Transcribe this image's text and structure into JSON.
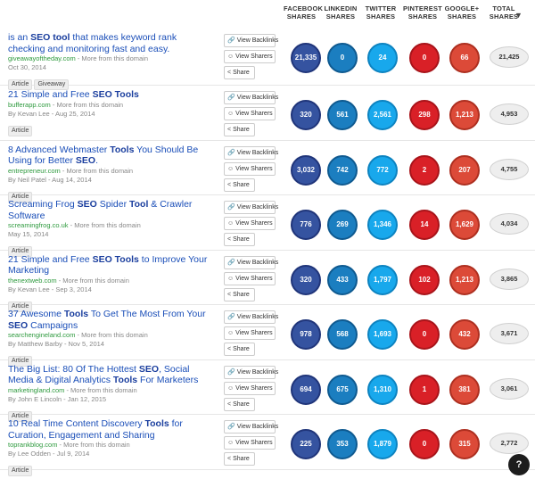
{
  "header": {
    "facebook": "FACEBOOK\nSHARES",
    "linkedin": "LINKEDIN\nSHARES",
    "twitter": "TWITTER\nSHARES",
    "pinterest": "PINTEREST\nSHARES",
    "googleplus": "GOOGLE+\nSHARES",
    "total": "TOTAL SHARES"
  },
  "buttons": {
    "backlinks": "View Backlinks",
    "sharers": "View Sharers",
    "share": "Share"
  },
  "rows": [
    {
      "title_html": "is an <b>SEO tool</b> that makes keyword rank checking and monitoring fast and easy.",
      "domain": "giveawayoftheday.com",
      "more": " - More from this domain",
      "byline": "Oct 30, 2014",
      "tags": [
        "Article",
        "Giveaway"
      ],
      "fb": "21,335",
      "li": "0",
      "tw": "24",
      "pi": "0",
      "gp": "66",
      "total": "21,425"
    },
    {
      "title_html": "21 Simple and Free <b>SEO Tools</b>",
      "domain": "bufferapp.com",
      "more": " - More from this domain",
      "byline": "By Kevan Lee - Aug 25, 2014",
      "tags": [
        "Article"
      ],
      "fb": "320",
      "li": "561",
      "tw": "2,561",
      "pi": "298",
      "gp": "1,213",
      "total": "4,953"
    },
    {
      "title_html": "8 Advanced Webmaster <b>Tools</b> You Should Be Using for Better <b>SEO</b>.",
      "domain": "entrepreneur.com",
      "more": " - More from this domain",
      "byline": "By Neil Patel - Aug 14, 2014",
      "tags": [
        "Article"
      ],
      "fb": "3,032",
      "li": "742",
      "tw": "772",
      "pi": "2",
      "gp": "207",
      "total": "4,755"
    },
    {
      "title_html": "Screaming Frog <b>SEO</b> Spider <b>Tool</b> &amp; Crawler Software",
      "domain": "screamingfrog.co.uk",
      "more": " - More from this domain",
      "byline": "May 15, 2014",
      "tags": [
        "Article"
      ],
      "fb": "776",
      "li": "269",
      "tw": "1,346",
      "pi": "14",
      "gp": "1,629",
      "total": "4,034"
    },
    {
      "title_html": "21 Simple and Free <b>SEO Tools</b> to Improve Your Marketing",
      "domain": "thenextweb.com",
      "more": " - More from this domain",
      "byline": "By Kevan Lee - Sep 3, 2014",
      "tags": [
        "Article"
      ],
      "fb": "320",
      "li": "433",
      "tw": "1,797",
      "pi": "102",
      "gp": "1,213",
      "total": "3,865"
    },
    {
      "title_html": "37 Awesome <b>Tools</b> To Get The Most From Your <b>SEO</b> Campaigns",
      "domain": "searchengineland.com",
      "more": " - More from this domain",
      "byline": "By Matthew Barby - Nov 5, 2014",
      "tags": [
        "Article"
      ],
      "fb": "978",
      "li": "568",
      "tw": "1,693",
      "pi": "0",
      "gp": "432",
      "total": "3,671"
    },
    {
      "title_html": "The Big List: 80 Of The Hottest <b>SEO</b>, Social Media &amp; Digital Analytics <b>Tools</b> For Marketers",
      "domain": "marketingland.com",
      "more": " - More from this domain",
      "byline": "By John E Lincoln - Jan 12, 2015",
      "tags": [
        "Article"
      ],
      "fb": "694",
      "li": "675",
      "tw": "1,310",
      "pi": "1",
      "gp": "381",
      "total": "3,061"
    },
    {
      "title_html": "10 Real Time Content Discovery <b>Tools</b> for Curation, Engagement and Sharing",
      "domain": "toprankblog.com",
      "more": " - More from this domain",
      "byline": "By Lee Odden - Jul 9, 2014",
      "tags": [
        "Article"
      ],
      "fb": "225",
      "li": "353",
      "tw": "1,879",
      "pi": "0",
      "gp": "315",
      "total": "2,772"
    }
  ],
  "help": "?"
}
